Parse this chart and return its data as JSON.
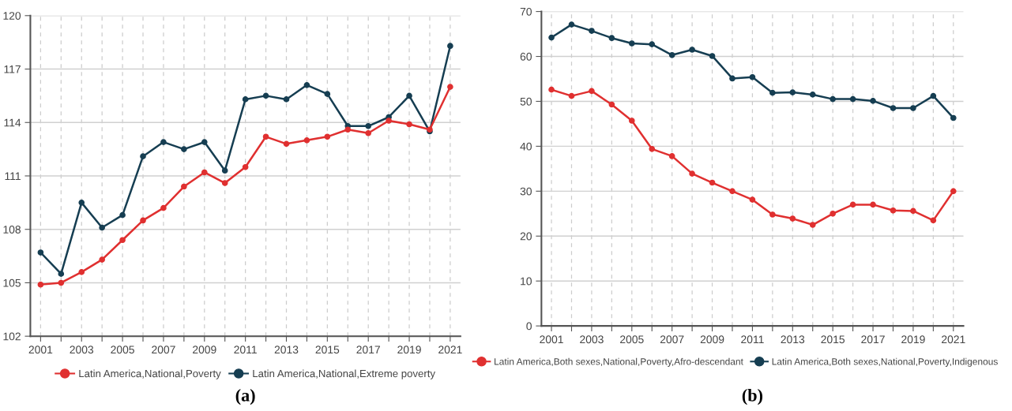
{
  "chart_data": [
    {
      "type": "line",
      "title": "(a)",
      "categories": [
        "2001",
        null,
        "2003",
        null,
        "2005",
        null,
        "2007",
        null,
        "2009",
        null,
        "2011",
        null,
        "2013",
        null,
        "2015",
        null,
        "2017",
        null,
        "2019",
        null,
        "2021"
      ],
      "series": [
        {
          "name": "Latin America,National,Poverty",
          "color": "#e03030",
          "values": [
            104.9,
            105.0,
            105.6,
            106.3,
            107.4,
            108.5,
            109.2,
            110.4,
            111.2,
            110.6,
            111.5,
            113.2,
            112.8,
            113.0,
            113.2,
            113.6,
            113.4,
            114.1,
            113.9,
            113.6,
            116.0
          ]
        },
        {
          "name": "Latin America,National,Extreme poverty",
          "color": "#163e52",
          "values": [
            106.7,
            105.5,
            109.5,
            108.1,
            108.8,
            112.1,
            112.9,
            112.5,
            112.9,
            111.3,
            115.3,
            115.5,
            115.3,
            116.1,
            115.6,
            113.8,
            113.8,
            114.3,
            115.5,
            113.5,
            118.3
          ]
        }
      ],
      "ylim": [
        102,
        120
      ],
      "yticks": [
        102,
        105,
        108,
        111,
        114,
        117,
        120
      ],
      "grid": true,
      "legend": "bottom",
      "marker": "circle",
      "line_style": "solid"
    },
    {
      "type": "line",
      "title": "(b)",
      "categories": [
        "2001",
        null,
        "2003",
        null,
        "2005",
        null,
        "2007",
        null,
        "2009",
        null,
        "2011",
        null,
        "2013",
        null,
        "2015",
        null,
        "2017",
        null,
        "2019",
        null,
        "2021"
      ],
      "series": [
        {
          "name": "Latin America,Both sexes,National,Poverty,Afro-descendant",
          "color": "#e03030",
          "values": [
            52.6,
            51.2,
            52.3,
            49.3,
            45.7,
            39.4,
            37.8,
            33.9,
            31.9,
            30.0,
            28.1,
            24.8,
            23.9,
            22.5,
            25.0,
            27.0,
            27.0,
            25.7,
            25.6,
            23.5,
            30.0
          ]
        },
        {
          "name": "Latin America,Both sexes,National,Poverty,Indigenous",
          "color": "#163e52",
          "values": [
            64.2,
            67.1,
            65.7,
            64.1,
            62.9,
            62.7,
            60.3,
            61.5,
            60.1,
            55.1,
            55.4,
            51.9,
            52.0,
            51.5,
            50.5,
            50.5,
            50.1,
            48.5,
            48.5,
            51.2,
            46.3
          ]
        }
      ],
      "ylim": [
        0,
        70
      ],
      "yticks": [
        0,
        10,
        20,
        30,
        40,
        50,
        60,
        70
      ],
      "grid": true,
      "legend": "bottom",
      "marker": "circle",
      "line_style": "solid"
    }
  ]
}
